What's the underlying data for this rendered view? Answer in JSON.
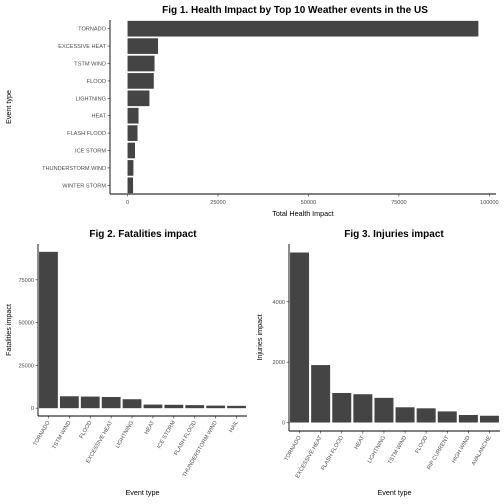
{
  "colors": {
    "bar": "#444444",
    "axis": "#000000",
    "tick_text": "#4d4d4d",
    "background": "#ffffff"
  },
  "chart_data": [
    {
      "type": "bar",
      "orientation": "horizontal",
      "title": "Fig 1. Health Impact by Top 10 Weather events in the US",
      "xlabel": "Total Health Impact",
      "ylabel": "Event type",
      "categories": [
        "TORNADO",
        "EXCESSIVE HEAT",
        "TSTM WIND",
        "FLOOD",
        "LIGHTNING",
        "HEAT",
        "FLASH FLOOD",
        "ICE STORM",
        "THUNDERSTORM WIND",
        "WINTER STORM"
      ],
      "values": [
        96979,
        8428,
        7461,
        7259,
        6046,
        3037,
        2755,
        2064,
        1621,
        1527
      ],
      "xlim": [
        -4850,
        101850
      ],
      "xticks": [
        0,
        25000,
        50000,
        75000,
        100000
      ],
      "xtick_labels": [
        "0",
        "25000",
        "50000",
        "75000",
        "100000"
      ],
      "grid": false
    },
    {
      "type": "bar",
      "orientation": "vertical",
      "title": "Fig 2. Fatalities impact",
      "xlabel": "Event type",
      "ylabel": "Fatalities impact",
      "categories": [
        "TORNADO",
        "TSTM WIND",
        "FLOOD",
        "EXCESSIVE HEAT",
        "LIGHTNING",
        "HEAT",
        "ICE STORM",
        "FLASH FLOOD",
        "THUNDERSTORM WIND",
        "HAIL"
      ],
      "values": [
        91346,
        6957,
        6789,
        6525,
        5230,
        2100,
        1975,
        1777,
        1488,
        1361
      ],
      "ylim": [
        -4570,
        95920
      ],
      "yticks": [
        0,
        25000,
        50000,
        75000
      ],
      "ytick_labels": [
        "0",
        "25000",
        "50000",
        "75000"
      ],
      "grid": false
    },
    {
      "type": "bar",
      "orientation": "vertical",
      "title": "Fig 3. Injuries impact",
      "xlabel": "Event type",
      "ylabel": "Injuries impact",
      "categories": [
        "TORNADO",
        "EXCESSIVE HEAT",
        "FLASH FLOOD",
        "HEAT",
        "LIGHTNING",
        "TSTM WIND",
        "FLOOD",
        "RIP CURRENT",
        "HIGH WIND",
        "AVALANCHE"
      ],
      "values": [
        5633,
        1903,
        978,
        937,
        816,
        504,
        470,
        368,
        248,
        224
      ],
      "ylim": [
        -282,
        5915
      ],
      "yticks": [
        0,
        2000,
        4000
      ],
      "ytick_labels": [
        "0",
        "2000",
        "4000"
      ],
      "grid": false
    }
  ]
}
